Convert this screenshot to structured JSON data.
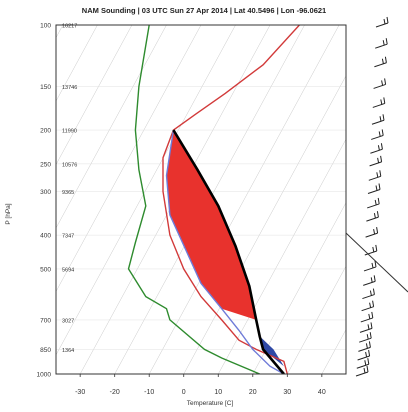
{
  "chart_data": {
    "type": "line",
    "title": "NAM Sounding | 03 UTC Sun 27 Apr 2014 | Lat 40.5496 | Lon -96.0621",
    "xlabel": "Temperature [C]",
    "ylabel": "P [hPa]",
    "xticks": [
      -30,
      -20,
      -10,
      0,
      10,
      20,
      30,
      40
    ],
    "xlim": [
      -37,
      47
    ],
    "y_log_scale": true,
    "ylim": [
      1000,
      100
    ],
    "pressure_levels": [
      {
        "p": 100,
        "height": "16217"
      },
      {
        "p": 150,
        "height": "13746"
      },
      {
        "p": 200,
        "height": "11990"
      },
      {
        "p": 250,
        "height": "10576"
      },
      {
        "p": 300,
        "height": "9365"
      },
      {
        "p": 400,
        "height": "7347"
      },
      {
        "p": 500,
        "height": "5694"
      },
      {
        "p": 700,
        "height": "3027"
      },
      {
        "p": 850,
        "height": "1364"
      },
      {
        "p": 1000,
        "height": ""
      }
    ],
    "series": [
      {
        "color": "#d23a3a",
        "points": [
          [
            33.5,
            100
          ],
          [
            23,
            130
          ],
          [
            12,
            157
          ],
          [
            3.5,
            180
          ],
          [
            -3,
            200
          ],
          [
            -6,
            240
          ],
          [
            -6,
            300
          ],
          [
            -4,
            400
          ],
          [
            0,
            500
          ],
          [
            5,
            600
          ],
          [
            11,
            700
          ],
          [
            16,
            800
          ],
          [
            21,
            850
          ],
          [
            29,
            920
          ],
          [
            30,
            1000
          ]
        ]
      },
      {
        "color": "#2e8b2e",
        "points": [
          [
            -10,
            100
          ],
          [
            -13,
            150
          ],
          [
            -14,
            200
          ],
          [
            -13,
            260
          ],
          [
            -11,
            330
          ],
          [
            -14,
            420
          ],
          [
            -16,
            500
          ],
          [
            -11,
            600
          ],
          [
            -5,
            650
          ],
          [
            -4,
            700
          ],
          [
            6,
            850
          ],
          [
            11,
            900
          ],
          [
            22,
            1000
          ]
        ]
      },
      {
        "color": "#6f7bd8",
        "points": [
          [
            -3,
            200
          ],
          [
            -5,
            270
          ],
          [
            -4,
            350
          ],
          [
            1,
            450
          ],
          [
            5,
            550
          ],
          [
            11,
            650
          ],
          [
            16,
            750
          ],
          [
            20,
            850
          ],
          [
            25,
            950
          ],
          [
            29,
            1000
          ]
        ]
      },
      {
        "color": "#000000",
        "points": [
          [
            -3,
            200
          ],
          [
            4,
            260
          ],
          [
            10,
            330
          ],
          [
            15,
            430
          ],
          [
            19,
            560
          ],
          [
            21,
            700
          ],
          [
            22,
            780
          ],
          [
            23,
            850
          ],
          [
            29,
            1000
          ]
        ]
      }
    ],
    "shading": [
      {
        "color": "#e8322d",
        "between": [
          "#000000",
          "#6f7bd8"
        ],
        "p_range": [
          200,
          700
        ]
      },
      {
        "color": "#2f49a6",
        "p_range": [
          700,
          950
        ]
      }
    ],
    "wind_barbs": "right-edge column, 100–1000 hPa"
  }
}
